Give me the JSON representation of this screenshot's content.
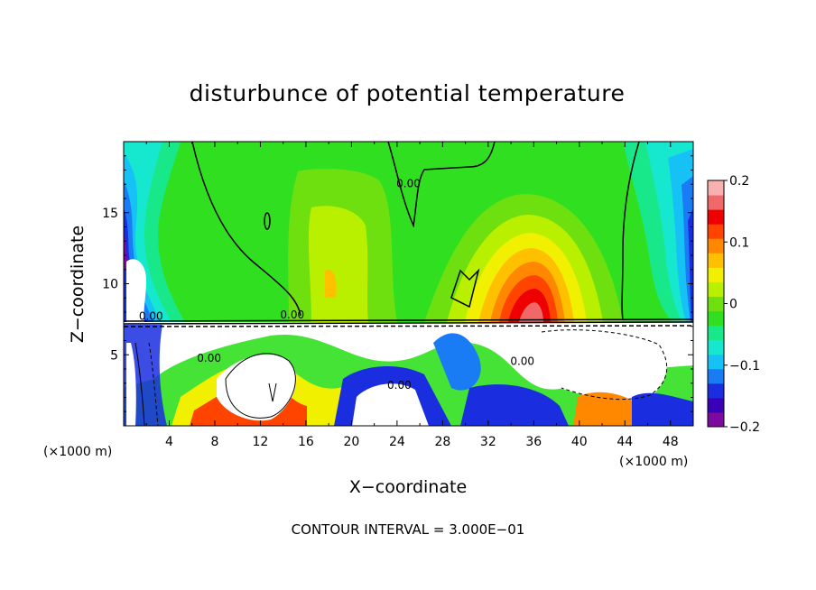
{
  "chart_data": {
    "type": "heatmap",
    "title": "disturbunce of potential temperature",
    "xlabel": "X−coordinate",
    "ylabel": "Z−coordinate",
    "x_unit": "(×1000 m)",
    "z_unit": "(×1000 m)",
    "xlim": [
      0,
      50
    ],
    "ylim": [
      0,
      20
    ],
    "x_ticks": [
      "4",
      "8",
      "12",
      "16",
      "20",
      "24",
      "28",
      "32",
      "36",
      "40",
      "44",
      "48"
    ],
    "y_ticks": [
      "5",
      "10",
      "15"
    ],
    "colorbar": {
      "range": [
        -0.2,
        0.2
      ],
      "tick_labels": [
        "0.2",
        "0.1",
        "0",
        "−0.1",
        "−0.2"
      ],
      "colors": [
        "#7d0aa0",
        "#3a00b8",
        "#1a2ee0",
        "#1a7cf5",
        "#16c2f5",
        "#16e8d0",
        "#18e88a",
        "#30e020",
        "#6ee010",
        "#b8f000",
        "#f0f000",
        "#ffc000",
        "#ff8800",
        "#ff4400",
        "#ee0000",
        "#f06868",
        "#f8b0b0"
      ]
    },
    "contour_labels": [
      "0.00",
      "0.00",
      "0.00",
      "0.00",
      "0.00",
      "0.00"
    ],
    "contour_interval": "CONTOUR INTERVAL = 3.000E−01"
  }
}
